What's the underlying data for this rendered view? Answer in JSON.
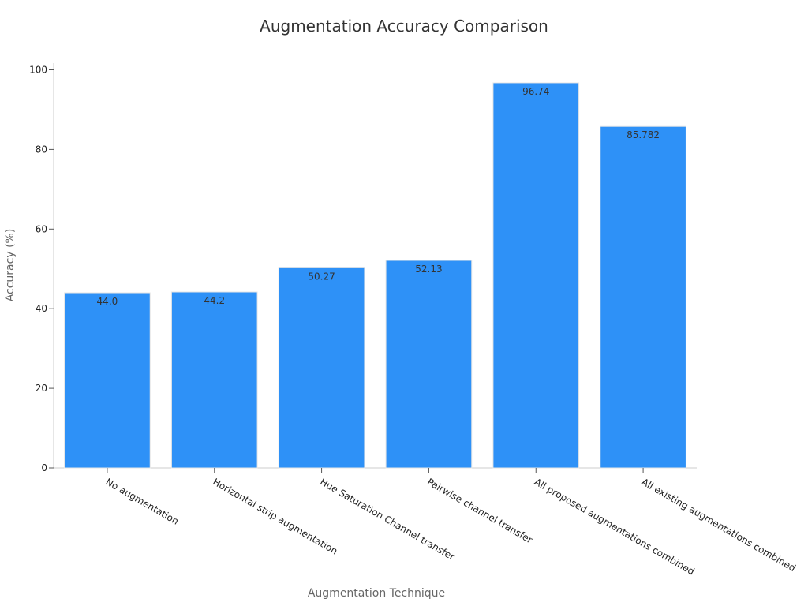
{
  "chart_data": {
    "type": "bar",
    "title": "Augmentation Accuracy Comparison",
    "xlabel": "Augmentation Technique",
    "ylabel": "Accuracy (%)",
    "ylim": [
      0,
      100
    ],
    "yticks": [
      0,
      20,
      40,
      60,
      80,
      100
    ],
    "grid": false,
    "categories": [
      "No augmentation",
      "Horizontal strip augmentation",
      "Hue Saturation Channel transfer",
      "Pairwise channel transfer",
      "All proposed augmentations combined",
      "All existing augmentations combined"
    ],
    "values": [
      44.0,
      44.2,
      50.27,
      52.13,
      96.74,
      85.782
    ],
    "value_labels": [
      "44.0",
      "44.2",
      "50.27",
      "52.13",
      "96.74",
      "85.782"
    ],
    "bar_color": "#2e91f7",
    "bar_edge_color": "#e6e6e6"
  }
}
